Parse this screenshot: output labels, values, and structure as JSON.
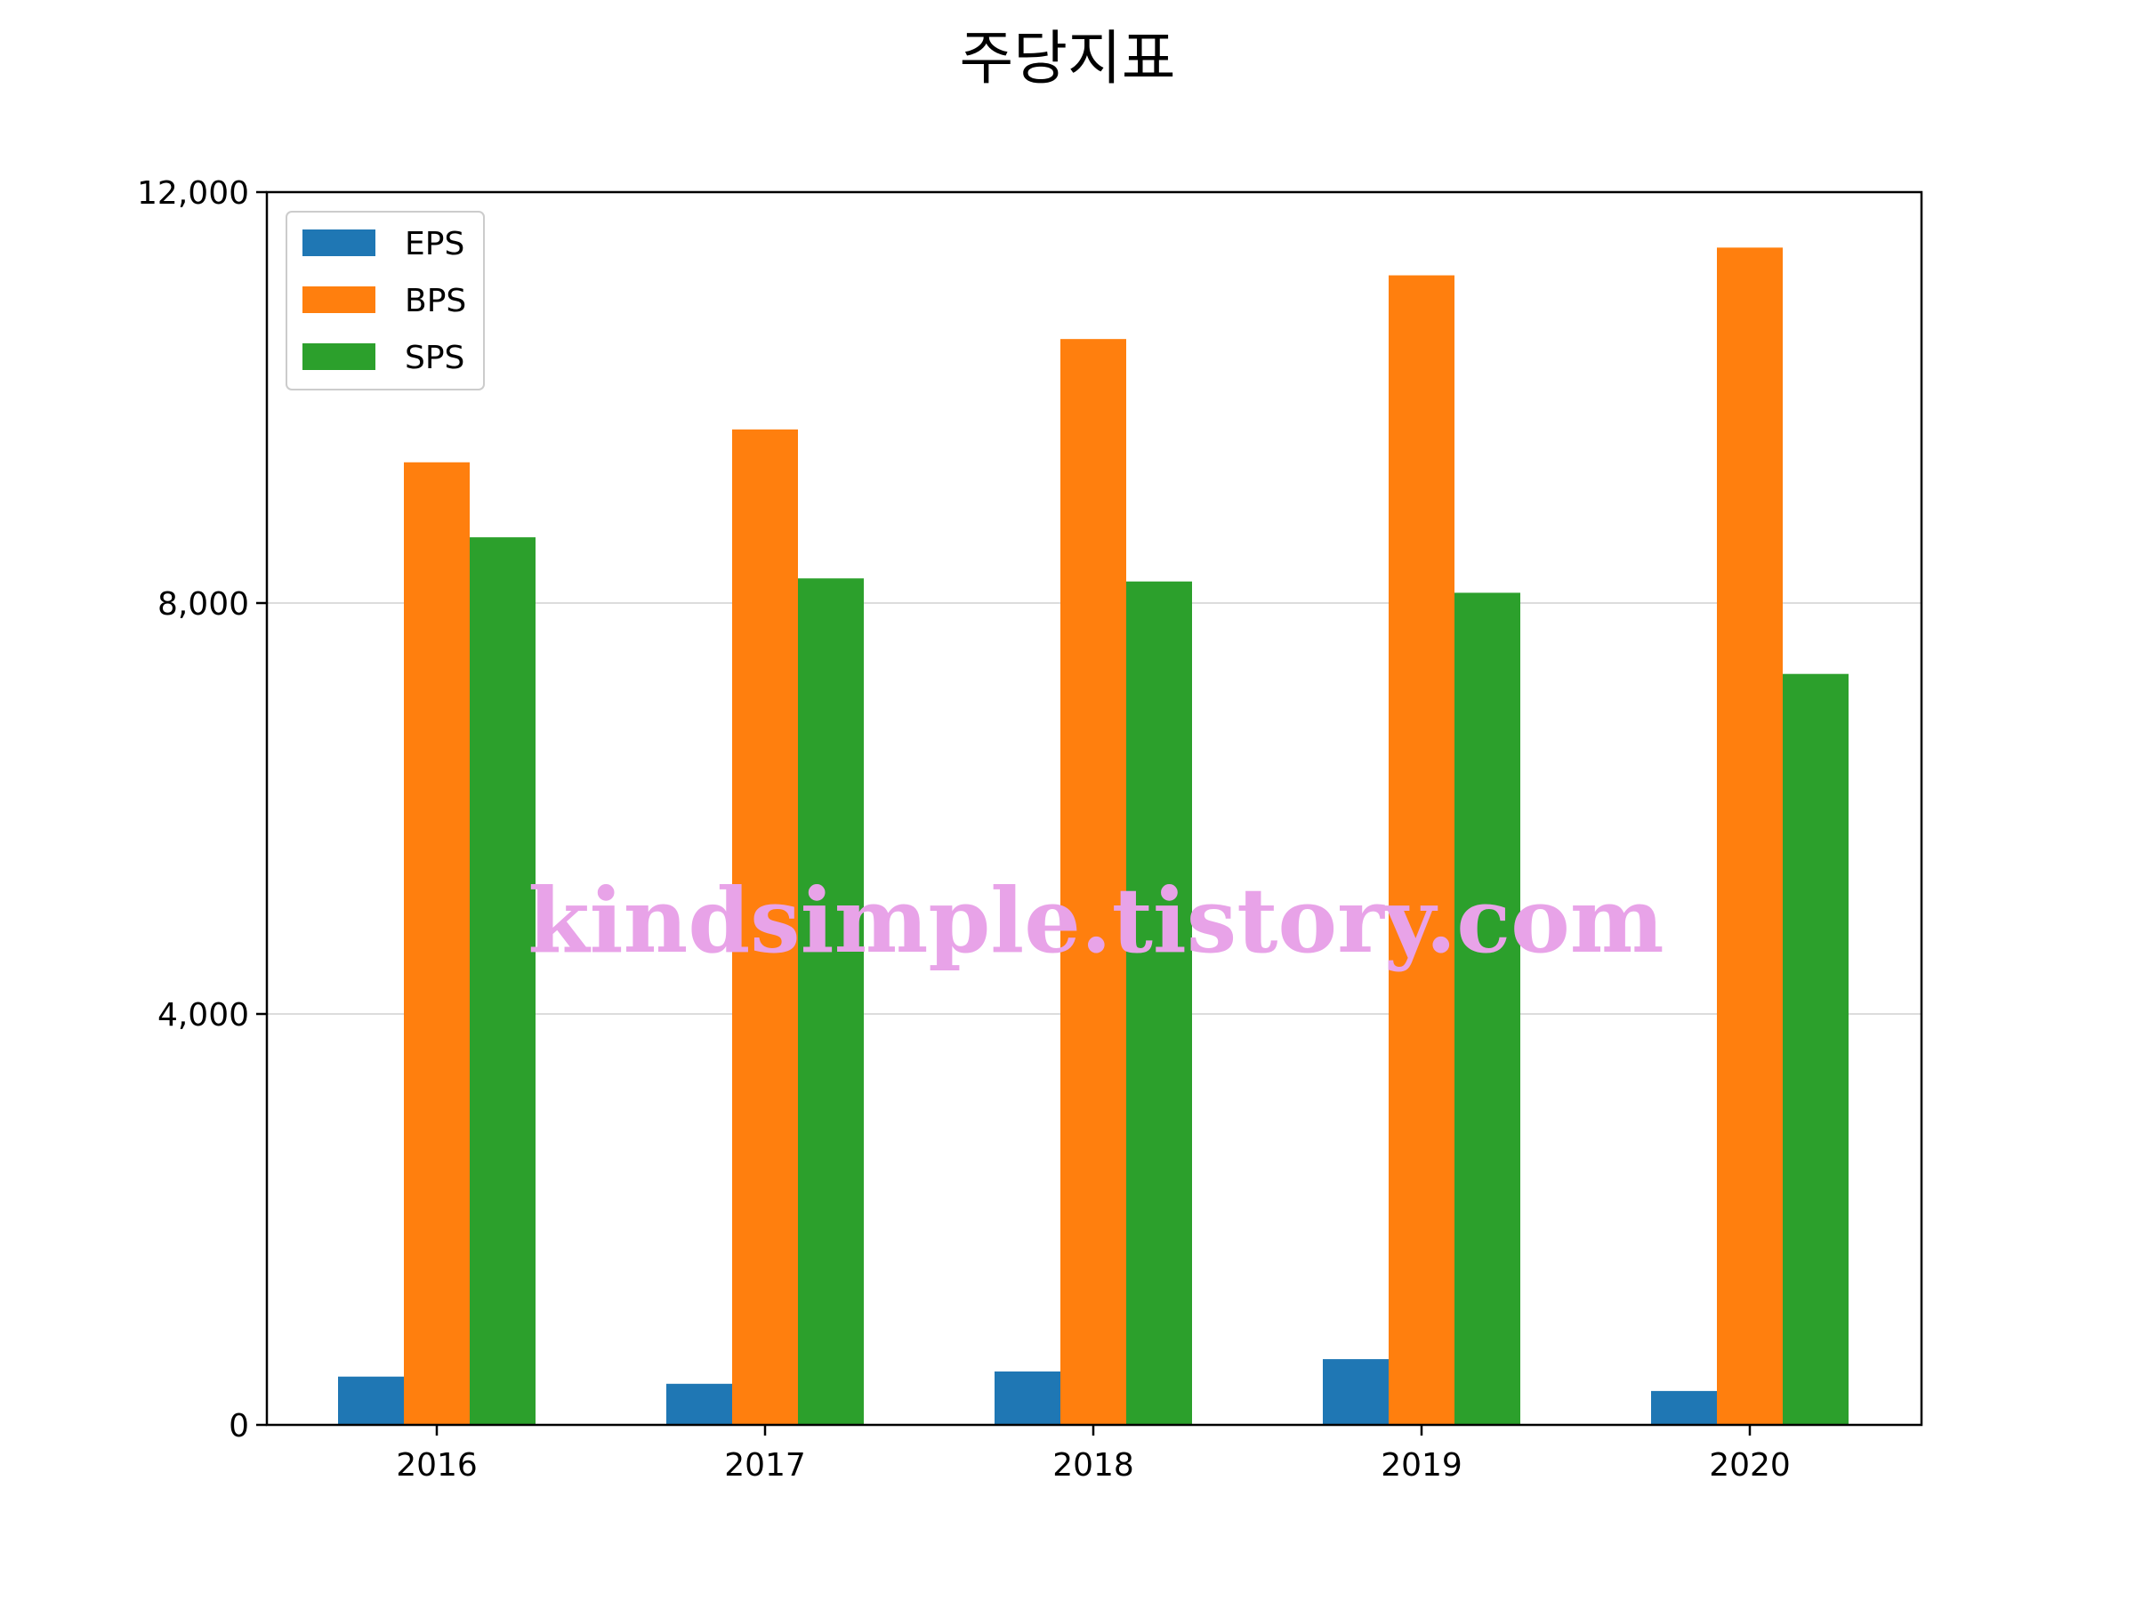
{
  "chart_data": {
    "type": "bar",
    "title": "주당지표",
    "xlabel": "",
    "ylabel": "",
    "categories": [
      "2016",
      "2017",
      "2018",
      "2019",
      "2020"
    ],
    "series": [
      {
        "name": "EPS",
        "color": "#1f77b4",
        "values": [
          470,
          400,
          520,
          640,
          330
        ]
      },
      {
        "name": "BPS",
        "color": "#ff7f0e",
        "values": [
          9370,
          9690,
          10570,
          11190,
          11460
        ]
      },
      {
        "name": "SPS",
        "color": "#2ca02c",
        "values": [
          8640,
          8240,
          8210,
          8100,
          7310
        ]
      }
    ],
    "ylim": [
      0,
      12000
    ],
    "yticks": [
      0,
      4000,
      8000,
      12000
    ],
    "ytick_labels": [
      "0",
      "4,000",
      "8,000",
      "12,000"
    ],
    "grid": "horizontal",
    "legend_position": "top-left",
    "watermark": "kindsimple.tistory.com"
  }
}
